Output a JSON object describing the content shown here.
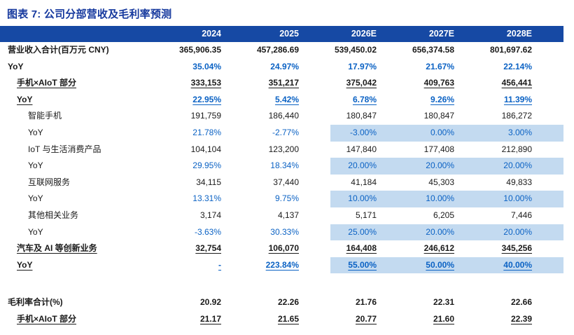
{
  "figure": {
    "title": "图表 7: 公司分部营收及毛利率预测"
  },
  "colors": {
    "title_blue": "#16399E",
    "header_bg": "#1649A4",
    "header_text": "#FFFFFF",
    "yoy_blue": "#0B62C4",
    "body_black": "#1A1A1A",
    "forecast_highlight": "#C3DAF0"
  },
  "chart_data": {
    "type": "table",
    "title": "图表 7: 公司分部营收及毛利率预测",
    "columns": [
      "2024",
      "2025",
      "2026E",
      "2027E",
      "2028E"
    ],
    "rows": [
      {
        "label": "营业收入合计(百万元  CNY)",
        "indent": 0,
        "style": "bold-black",
        "underline": false,
        "highlight": [],
        "values": [
          "365,906.35",
          "457,286.69",
          "539,450.02",
          "656,374.58",
          "801,697.62"
        ]
      },
      {
        "label": "YoY",
        "indent": 0,
        "style": "bold-blue",
        "underline": false,
        "highlight": [],
        "values": [
          "35.04%",
          "24.97%",
          "17.97%",
          "21.67%",
          "22.14%"
        ]
      },
      {
        "label": "手机×AIoT 部分",
        "indent": 1,
        "style": "bold-black",
        "underline": true,
        "highlight": [],
        "values": [
          "333,153",
          "351,217",
          "375,042",
          "409,763",
          "456,441"
        ]
      },
      {
        "label": "YoY",
        "indent": 1,
        "style": "bold-blue",
        "underline": true,
        "highlight": [],
        "values": [
          "22.95%",
          "5.42%",
          "6.78%",
          "9.26%",
          "11.39%"
        ]
      },
      {
        "label": "智能手机",
        "indent": 2,
        "style": "black",
        "underline": false,
        "highlight": [],
        "values": [
          "191,759",
          "186,440",
          "180,847",
          "180,847",
          "186,272"
        ]
      },
      {
        "label": "YoY",
        "indent": 2,
        "style": "blue",
        "underline": false,
        "highlight": [
          2,
          3,
          4
        ],
        "values": [
          "21.78%",
          "-2.77%",
          "-3.00%",
          "0.00%",
          "3.00%"
        ]
      },
      {
        "label": "IoT 与生活消费产品",
        "indent": 2,
        "style": "black",
        "underline": false,
        "highlight": [],
        "values": [
          "104,104",
          "123,200",
          "147,840",
          "177,408",
          "212,890"
        ]
      },
      {
        "label": "YoY",
        "indent": 2,
        "style": "blue",
        "underline": false,
        "highlight": [
          2,
          3,
          4
        ],
        "values": [
          "29.95%",
          "18.34%",
          "20.00%",
          "20.00%",
          "20.00%"
        ]
      },
      {
        "label": "互联网服务",
        "indent": 2,
        "style": "black",
        "underline": false,
        "highlight": [],
        "values": [
          "34,115",
          "37,440",
          "41,184",
          "45,303",
          "49,833"
        ]
      },
      {
        "label": "YoY",
        "indent": 2,
        "style": "blue",
        "underline": false,
        "highlight": [
          2,
          3,
          4
        ],
        "values": [
          "13.31%",
          "9.75%",
          "10.00%",
          "10.00%",
          "10.00%"
        ]
      },
      {
        "label": "其他相关业务",
        "indent": 2,
        "style": "black",
        "underline": false,
        "highlight": [],
        "values": [
          "3,174",
          "4,137",
          "5,171",
          "6,205",
          "7,446"
        ]
      },
      {
        "label": "YoY",
        "indent": 2,
        "style": "blue",
        "underline": false,
        "highlight": [
          2,
          3,
          4
        ],
        "values": [
          "-3.63%",
          "30.33%",
          "25.00%",
          "20.00%",
          "20.00%"
        ]
      },
      {
        "label": "汽车及 AI 等创新业务",
        "indent": 1,
        "style": "bold-black",
        "underline": true,
        "highlight": [],
        "values": [
          "32,754",
          "106,070",
          "164,408",
          "246,612",
          "345,256"
        ]
      },
      {
        "label": "YoY",
        "indent": 1,
        "style": "bold-blue",
        "underline": true,
        "highlight": [
          2,
          3,
          4
        ],
        "values": [
          "-",
          "223.84%",
          "55.00%",
          "50.00%",
          "40.00%"
        ]
      },
      {
        "label": "",
        "indent": 0,
        "style": "spacer",
        "underline": false,
        "highlight": [],
        "values": [
          "",
          "",
          "",
          "",
          ""
        ]
      },
      {
        "label": "毛利率合计(%)",
        "indent": 0,
        "style": "bold-black",
        "underline": false,
        "highlight": [],
        "values": [
          "20.92",
          "22.26",
          "21.76",
          "22.31",
          "22.66"
        ]
      },
      {
        "label": "手机×AIoT 部分",
        "indent": 1,
        "style": "bold-black",
        "underline": true,
        "highlight": [],
        "values": [
          "21.17",
          "21.65",
          "20.77",
          "21.60",
          "22.39"
        ]
      }
    ]
  }
}
